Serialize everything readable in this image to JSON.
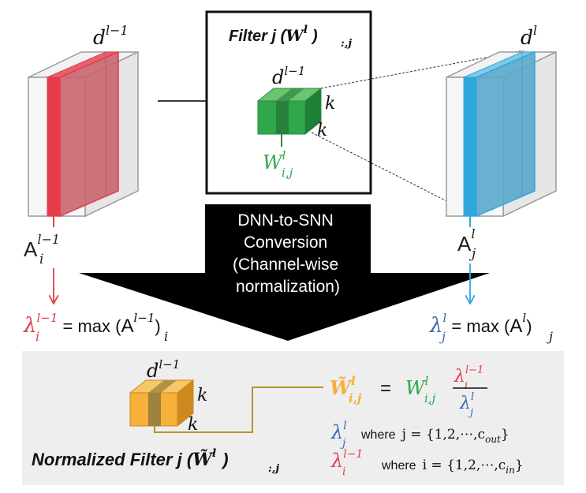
{
  "colors": {
    "red": "#e53b4b",
    "blue": "#2fa8dc",
    "green": "#2ea84a",
    "orange": "#f5b13a",
    "olive": "#b8912e",
    "dark_blue": "#3b66b4",
    "panel_bg": "#eeeeee"
  },
  "left_tensor": {
    "depth_label": "d",
    "depth_sup": "l−1",
    "act_base": "A",
    "act_sub": "i",
    "act_sup": "l−1"
  },
  "right_tensor": {
    "depth_label": "d",
    "depth_sup": "l",
    "act_base": "A",
    "act_sub": "j",
    "act_sup": "l"
  },
  "filter_box": {
    "title": "Filter j (",
    "title_var": "W",
    "title_sup": "l",
    "title_sub": ":,j",
    "title_close": ")",
    "depth_label": "d",
    "depth_sup": "l−1",
    "k1": "k",
    "k2": "k",
    "weight_base": "W",
    "weight_sup": "l",
    "weight_sub": "i,j"
  },
  "conversion": {
    "line1": "DNN-to-SNN",
    "line2": "Conversion",
    "line3": "(Channel-wise",
    "line4": "normalization)"
  },
  "lambda_left": {
    "sym": "λ",
    "sub": "i",
    "sup": "l−1",
    "eq": " = max (",
    "arg_base": "A",
    "arg_sub": "i",
    "arg_sup": "l−1",
    "close": ")"
  },
  "lambda_right": {
    "sym": "λ",
    "sub": "j",
    "sup": "l",
    "eq": " = max (",
    "arg_base": "A",
    "arg_sub": "j",
    "arg_sup": "l",
    "close": ")"
  },
  "bottom_panel": {
    "depth_label": "d",
    "depth_sup": "l−1",
    "k1": "k",
    "k2": "k",
    "title": "Normalized Filter j (",
    "title_var": "W̃",
    "title_sup": "l",
    "title_sub": ":,j",
    "title_close": ")",
    "formula_lhs": "W̃",
    "formula_lhs_sup": "l",
    "formula_lhs_sub": "i,j",
    "formula_eq": "=",
    "formula_w": "W",
    "formula_w_sup": "l",
    "formula_w_sub": "i,j",
    "num_sym": "λ",
    "num_sub": "i",
    "num_sup": "l−1",
    "den_sym": "λ",
    "den_sub": "j",
    "den_sup": "l",
    "where_j_sym": "λ",
    "where_j_sub": "j",
    "where_j_sup": "l",
    "where_j_text": "where",
    "where_j_set": "j = {1,2,⋯,c",
    "where_j_set_sub": "out",
    "where_j_close": "}",
    "where_i_sym": "λ",
    "where_i_sub": "i",
    "where_i_sup": "l−1",
    "where_i_text": "where",
    "where_i_set": "i = {1,2,⋯,c",
    "where_i_set_sub": "in",
    "where_i_close": "}"
  }
}
